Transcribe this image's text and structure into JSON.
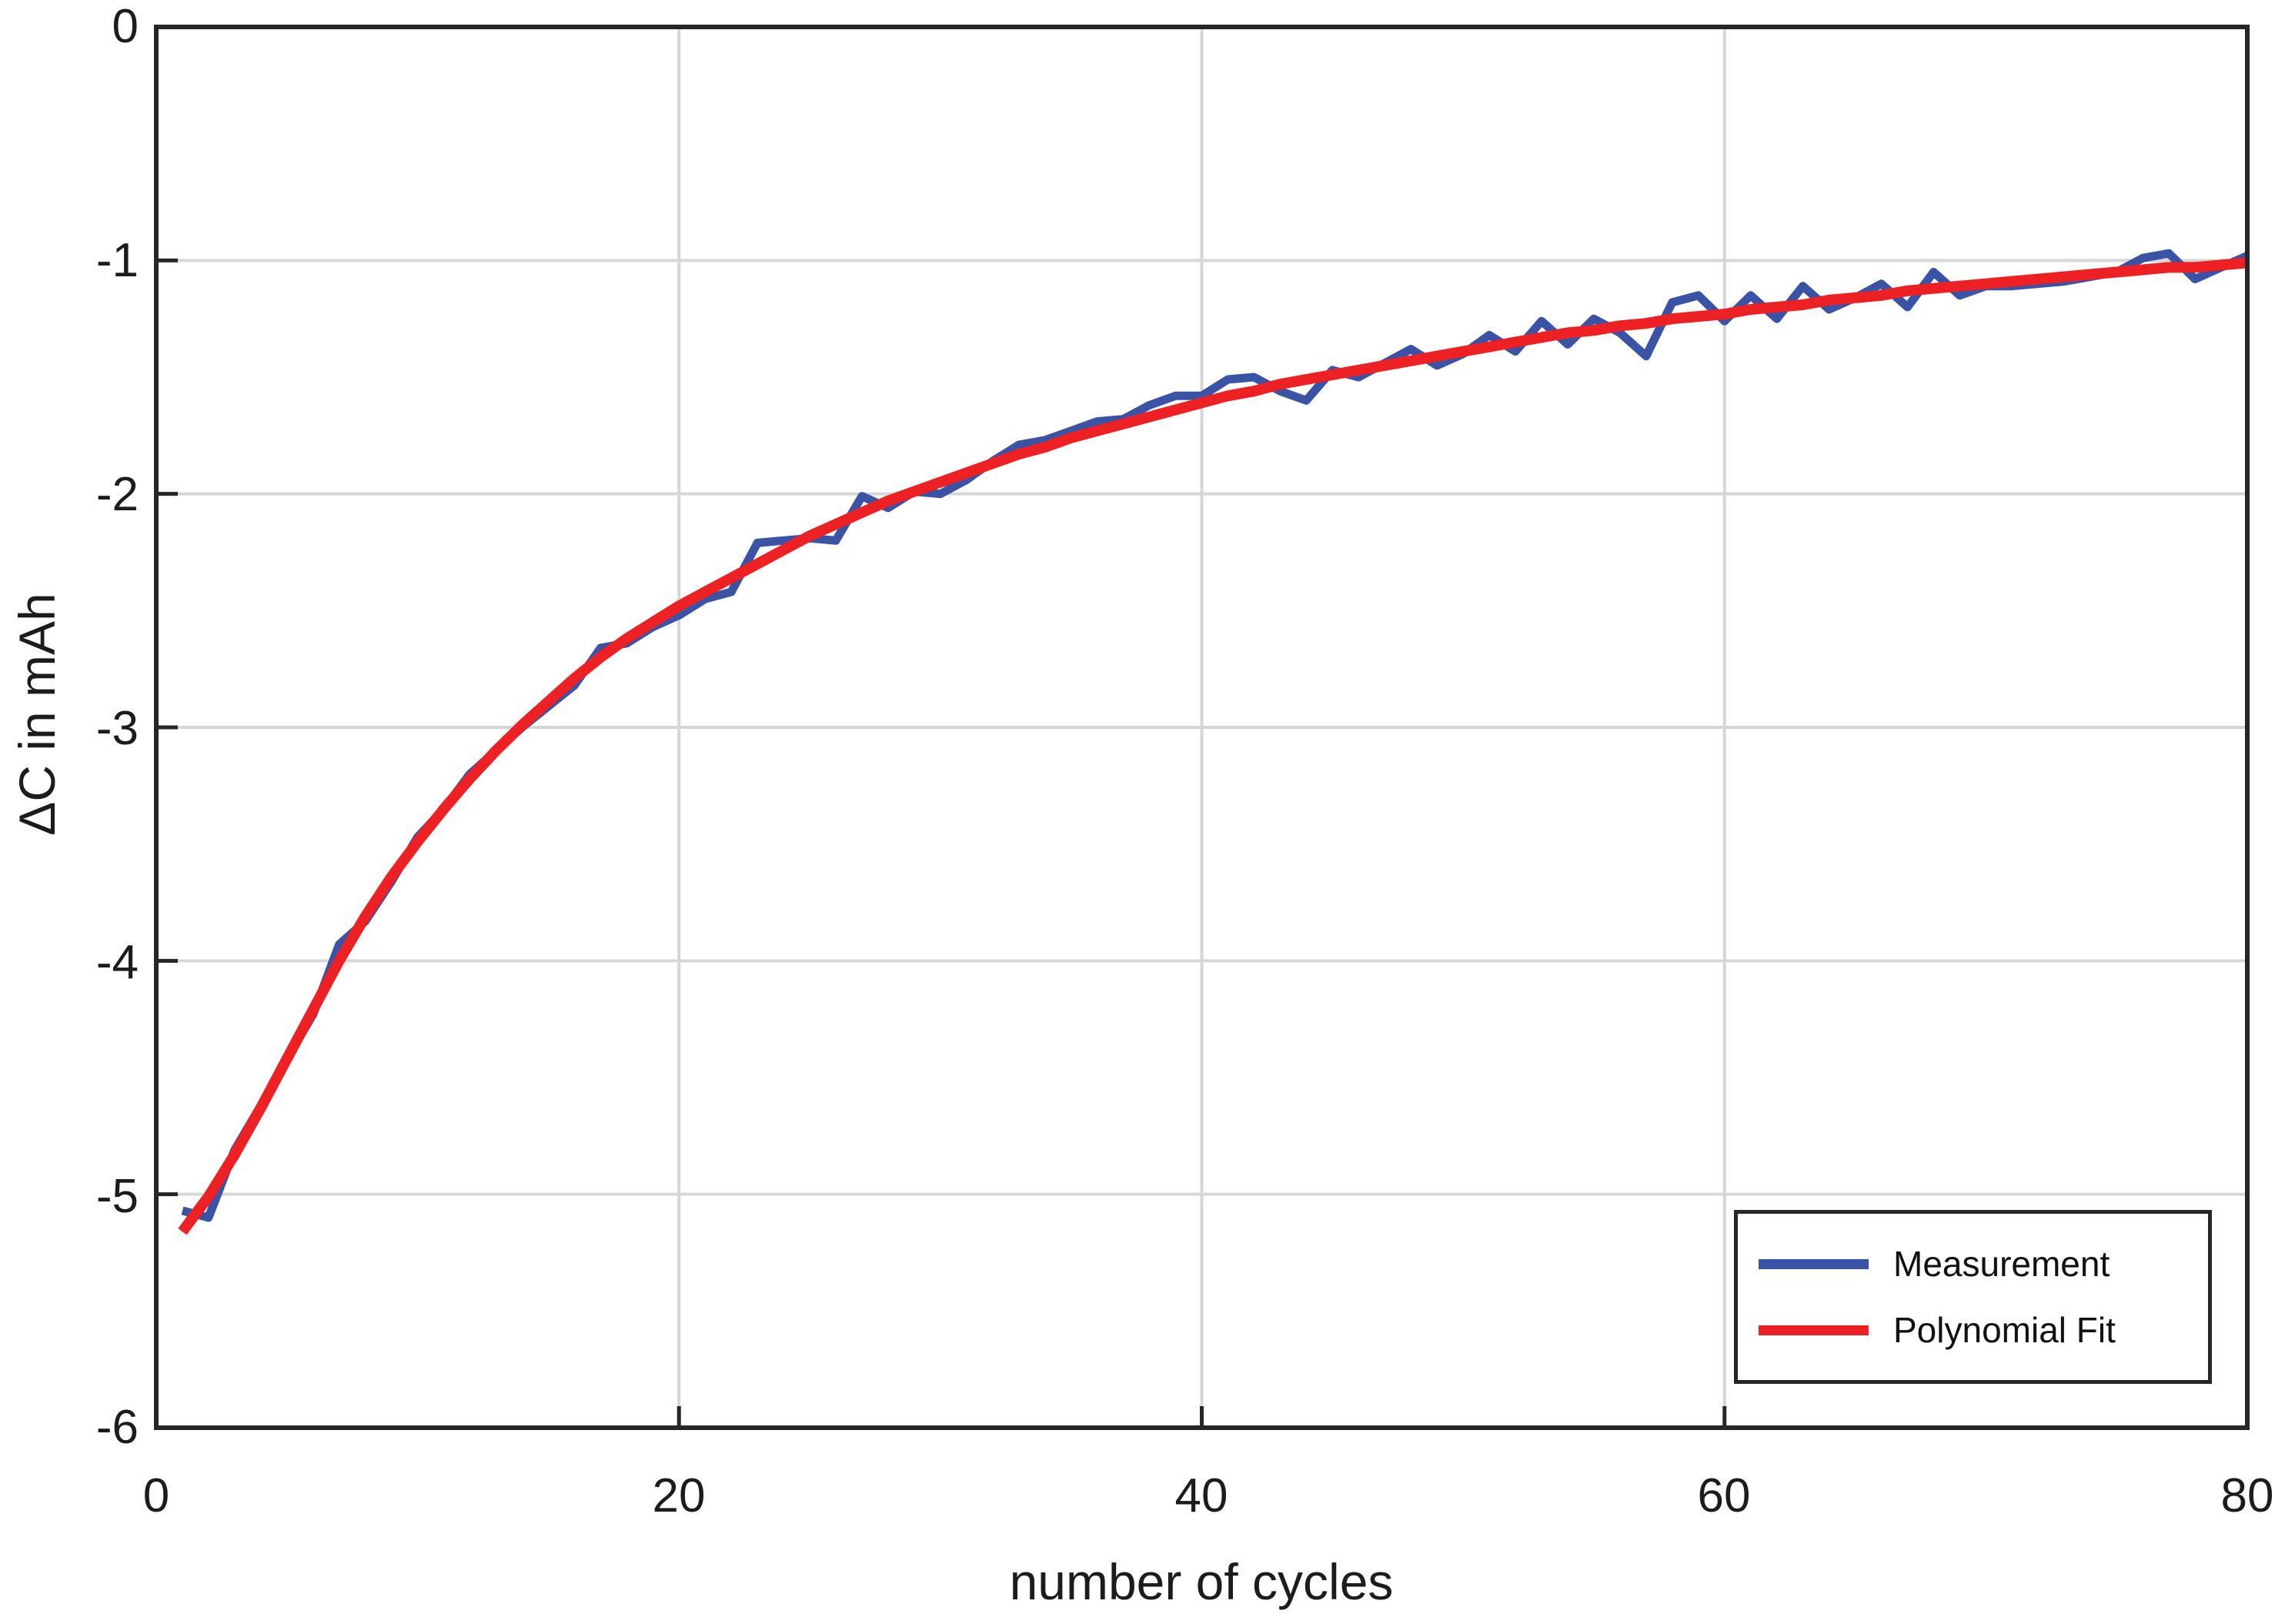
{
  "figure": {
    "background": "#ffffff"
  },
  "colors": {
    "measurement": "#3A53A4",
    "fit": "#ED2024",
    "grid": "#D6D6D6",
    "axis": "#262626",
    "text": "#1C1C1C"
  },
  "axes": {
    "xlabel": "number of cycles",
    "ylabel": "ΔC in mAh",
    "x_tick_labels": [
      "0",
      "20",
      "40",
      "60",
      "80"
    ],
    "y_tick_labels": [
      "0",
      "-1",
      "-2",
      "-3",
      "-4",
      "-5",
      "-6"
    ]
  },
  "legend": {
    "position": "bottom-right",
    "entries": [
      {
        "label": "Measurement",
        "color": "#3A53A4"
      },
      {
        "label": "Polynomial Fit",
        "color": "#ED2024"
      }
    ]
  },
  "chart_data": {
    "type": "line",
    "title": "",
    "xlabel": "number of cycles",
    "ylabel": "ΔC in mAh",
    "xlim": [
      0,
      80
    ],
    "ylim": [
      -6,
      0
    ],
    "x_ticks": [
      0,
      20,
      40,
      60,
      80
    ],
    "y_ticks": [
      0,
      -1,
      -2,
      -3,
      -4,
      -5,
      -6
    ],
    "grid": true,
    "legend_position": "bottom-right",
    "x": [
      1,
      2,
      3,
      4,
      5,
      6,
      7,
      8,
      9,
      10,
      11,
      12,
      13,
      14,
      15,
      16,
      17,
      18,
      19,
      20,
      21,
      22,
      23,
      24,
      25,
      26,
      27,
      28,
      29,
      30,
      31,
      32,
      33,
      34,
      35,
      36,
      37,
      38,
      39,
      40,
      41,
      42,
      43,
      44,
      45,
      46,
      47,
      48,
      49,
      50,
      51,
      52,
      53,
      54,
      55,
      56,
      57,
      58,
      59,
      60,
      61,
      62,
      63,
      64,
      65,
      66,
      67,
      68,
      69,
      70,
      71,
      72,
      73,
      74,
      75,
      76,
      77,
      78,
      79,
      80
    ],
    "series": [
      {
        "name": "Measurement",
        "color": "#3A53A4",
        "line_width": 11,
        "values": [
          -5.07,
          -5.1,
          -4.81,
          -4.62,
          -4.42,
          -4.23,
          -3.93,
          -3.83,
          -3.66,
          -3.47,
          -3.35,
          -3.2,
          -3.1,
          -3.0,
          -2.91,
          -2.82,
          -2.66,
          -2.64,
          -2.57,
          -2.52,
          -2.45,
          -2.42,
          -2.21,
          -2.2,
          -2.19,
          -2.2,
          -2.01,
          -2.06,
          -1.99,
          -2.0,
          -1.94,
          -1.86,
          -1.79,
          -1.77,
          -1.73,
          -1.69,
          -1.68,
          -1.62,
          -1.58,
          -1.58,
          -1.51,
          -1.5,
          -1.56,
          -1.6,
          -1.47,
          -1.5,
          -1.44,
          -1.38,
          -1.45,
          -1.4,
          -1.32,
          -1.39,
          -1.26,
          -1.36,
          -1.25,
          -1.31,
          -1.41,
          -1.18,
          -1.15,
          -1.26,
          -1.15,
          -1.25,
          -1.11,
          -1.21,
          -1.16,
          -1.1,
          -1.2,
          -1.05,
          -1.15,
          -1.11,
          -1.11,
          -1.1,
          -1.09,
          -1.07,
          -1.05,
          -0.99,
          -0.97,
          -1.08,
          -1.03,
          -0.98
        ]
      },
      {
        "name": "Polynomial Fit",
        "color": "#ED2024",
        "line_width": 14,
        "values": [
          -5.16,
          -5.01,
          -4.83,
          -4.63,
          -4.42,
          -4.21,
          -4.0,
          -3.81,
          -3.64,
          -3.49,
          -3.35,
          -3.22,
          -3.1,
          -2.99,
          -2.89,
          -2.79,
          -2.7,
          -2.62,
          -2.55,
          -2.48,
          -2.42,
          -2.36,
          -2.3,
          -2.24,
          -2.18,
          -2.13,
          -2.08,
          -2.03,
          -1.99,
          -1.95,
          -1.91,
          -1.87,
          -1.83,
          -1.8,
          -1.76,
          -1.73,
          -1.7,
          -1.67,
          -1.64,
          -1.61,
          -1.58,
          -1.56,
          -1.53,
          -1.51,
          -1.49,
          -1.47,
          -1.45,
          -1.43,
          -1.41,
          -1.39,
          -1.37,
          -1.35,
          -1.33,
          -1.31,
          -1.3,
          -1.28,
          -1.27,
          -1.25,
          -1.24,
          -1.23,
          -1.21,
          -1.2,
          -1.19,
          -1.17,
          -1.16,
          -1.15,
          -1.13,
          -1.12,
          -1.11,
          -1.1,
          -1.09,
          -1.08,
          -1.07,
          -1.06,
          -1.05,
          -1.04,
          -1.03,
          -1.03,
          -1.02,
          -1.01
        ]
      }
    ]
  }
}
